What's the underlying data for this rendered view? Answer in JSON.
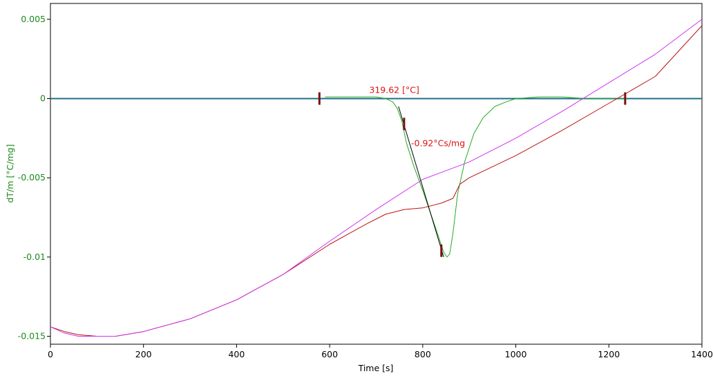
{
  "chart_data": {
    "type": "line",
    "xlabel": "Time [s]",
    "ylabel": "dT/m  [°C/mg]",
    "xlim": [
      0,
      1400
    ],
    "ylim": [
      -0.0155,
      0.006
    ],
    "xticks": [
      {
        "value": 0,
        "label": "0"
      },
      {
        "value": 200,
        "label": "200"
      },
      {
        "value": 400,
        "label": "400"
      },
      {
        "value": 600,
        "label": "600"
      },
      {
        "value": 800,
        "label": "800"
      },
      {
        "value": 1000,
        "label": "1000"
      },
      {
        "value": 1200,
        "label": "1200"
      },
      {
        "value": 1400,
        "label": "1400"
      }
    ],
    "yticks": [
      {
        "value": 0.005,
        "label": "0.005"
      },
      {
        "value": 0,
        "label": "0"
      },
      {
        "value": -0.005,
        "label": "-0.005"
      },
      {
        "value": -0.01,
        "label": "-0.01"
      },
      {
        "value": -0.015,
        "label": "-0.015"
      }
    ],
    "grid": false,
    "colors": {
      "ylabel": "#1a8a1a",
      "baseline": "#1f6f8b",
      "green": "#22aa22",
      "red": "#bb1111",
      "magenta": "#cc33ee",
      "marker": "#7a1010",
      "annotation": "#dd1111",
      "tangent": "#000000"
    },
    "series": [
      {
        "key": "baseline",
        "color": "#1f6f8b",
        "points": [
          [
            0,
            0
          ],
          [
            1400,
            0
          ]
        ]
      },
      {
        "key": "green",
        "color": "#22aa22",
        "points": [
          [
            590,
            0.0001
          ],
          [
            620,
            0.0001
          ],
          [
            680,
            0.0001
          ],
          [
            700,
            0.0001
          ],
          [
            720,
            0.0
          ],
          [
            735,
            -0.0002
          ],
          [
            745,
            -0.0006
          ],
          [
            755,
            -0.0014
          ],
          [
            765,
            -0.0028
          ],
          [
            780,
            -0.0042
          ],
          [
            800,
            -0.0058
          ],
          [
            820,
            -0.0075
          ],
          [
            835,
            -0.0088
          ],
          [
            845,
            -0.0097
          ],
          [
            852,
            -0.01
          ],
          [
            858,
            -0.0098
          ],
          [
            865,
            -0.0085
          ],
          [
            875,
            -0.006
          ],
          [
            890,
            -0.004
          ],
          [
            910,
            -0.0022
          ],
          [
            930,
            -0.0012
          ],
          [
            955,
            -0.0005
          ],
          [
            980,
            -0.0002
          ],
          [
            1000,
            0.0
          ],
          [
            1050,
            0.0001
          ],
          [
            1100,
            0.0001
          ],
          [
            1150,
            0.0
          ],
          [
            1240,
            0.0
          ]
        ]
      },
      {
        "key": "red",
        "color": "#bb1111",
        "points": [
          [
            0,
            -0.0144
          ],
          [
            30,
            -0.0147
          ],
          [
            60,
            -0.0149
          ],
          [
            100,
            -0.015
          ],
          [
            140,
            -0.015
          ],
          [
            200,
            -0.0147
          ],
          [
            300,
            -0.0139
          ],
          [
            400,
            -0.0127
          ],
          [
            500,
            -0.0111
          ],
          [
            600,
            -0.0092
          ],
          [
            680,
            -0.0079
          ],
          [
            720,
            -0.0073
          ],
          [
            760,
            -0.007
          ],
          [
            800,
            -0.0069
          ],
          [
            840,
            -0.0066
          ],
          [
            865,
            -0.0063
          ],
          [
            880,
            -0.0054
          ],
          [
            900,
            -0.005
          ],
          [
            950,
            -0.0043
          ],
          [
            1000,
            -0.0036
          ],
          [
            1100,
            -0.002
          ],
          [
            1200,
            -0.0003
          ],
          [
            1300,
            0.0014
          ],
          [
            1400,
            0.0046
          ]
        ]
      },
      {
        "key": "magenta",
        "color": "#cc33ee",
        "points": [
          [
            0,
            -0.0144
          ],
          [
            30,
            -0.0148
          ],
          [
            60,
            -0.015
          ],
          [
            100,
            -0.015
          ],
          [
            140,
            -0.015
          ],
          [
            200,
            -0.0147
          ],
          [
            300,
            -0.0139
          ],
          [
            400,
            -0.0127
          ],
          [
            500,
            -0.0111
          ],
          [
            600,
            -0.009
          ],
          [
            700,
            -0.007
          ],
          [
            800,
            -0.0051
          ],
          [
            900,
            -0.004
          ],
          [
            1000,
            -0.0025
          ],
          [
            1100,
            -0.0008
          ],
          [
            1200,
            0.001
          ],
          [
            1300,
            0.0028
          ],
          [
            1400,
            0.005
          ]
        ]
      },
      {
        "key": "tangent",
        "color": "#000000",
        "points": [
          [
            748,
            -0.0005
          ],
          [
            845,
            -0.01
          ]
        ]
      }
    ],
    "markers": [
      {
        "x": 578,
        "y": 0.0
      },
      {
        "x": 760,
        "y": -0.0016
      },
      {
        "x": 840,
        "y": -0.0096
      },
      {
        "x": 1235,
        "y": 0.0
      }
    ],
    "annotations": [
      {
        "text": "319.62 [°C]",
        "x": 685,
        "y": 0.00035
      },
      {
        "text": "-0.92°Cs/mg",
        "x": 775,
        "y": -0.003
      }
    ]
  }
}
